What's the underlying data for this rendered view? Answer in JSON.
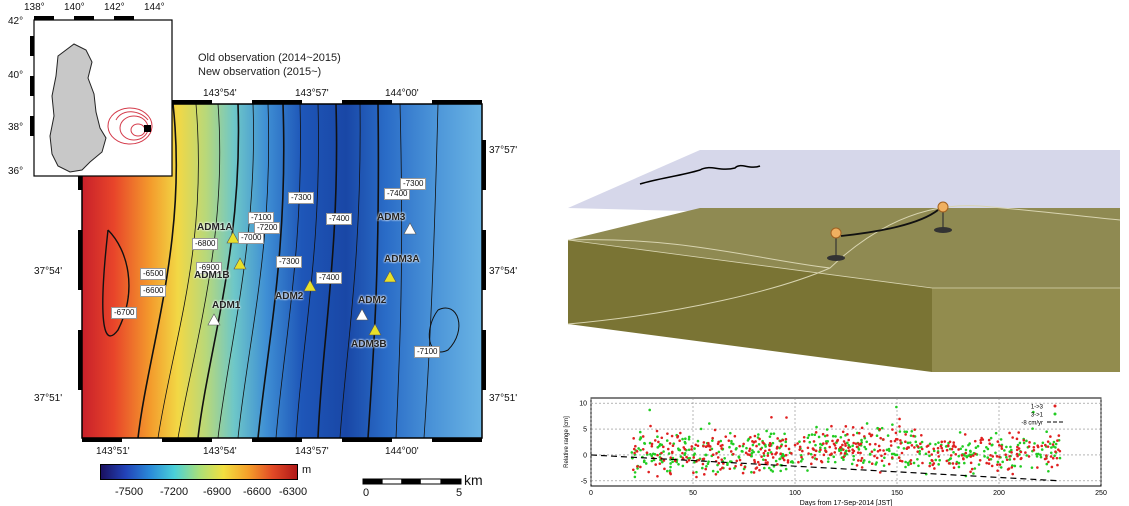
{
  "map": {
    "inset_lon_ticks": [
      "138°",
      "140°",
      "142°",
      "144°"
    ],
    "inset_lat_ticks": [
      "42°",
      "40°",
      "38°",
      "36°"
    ],
    "legend_old": "Old observation (2014~2015)",
    "legend_new": "New observation (2015~)",
    "lon_ticks": [
      "143°51'",
      "143°54'",
      "143°57'",
      "144°00'"
    ],
    "lat_ticks": [
      "37°57'",
      "37°54'",
      "37°51'"
    ],
    "stations": {
      "adm1a": "ADM1A",
      "adm1b": "ADM1B",
      "adm1": "ADM1",
      "adm2_y": "ADM2",
      "adm2_w": "ADM2",
      "adm3": "ADM3",
      "adm3a": "ADM3A",
      "adm3b": "ADM3B"
    },
    "contours": [
      "-6500",
      "-6600",
      "-6700",
      "-6800",
      "-6900",
      "-7000",
      "-7100",
      "-7200",
      "-7300",
      "-7300",
      "-7400",
      "-7400",
      "-7400",
      "-7300",
      "-7100"
    ],
    "colorbar": {
      "unit": "m",
      "ticks": [
        "-7500",
        "-7200",
        "-6900",
        "-6600",
        "-6300"
      ]
    },
    "scale": {
      "unit": "km",
      "ticks": [
        "0",
        "5"
      ]
    }
  },
  "chart_data": {
    "type": "scatter",
    "ylabel": "Relative range [cm]",
    "xlabel": "Days from 17-Sep-2014 [JST]",
    "xlim": [
      0,
      250
    ],
    "ylim": [
      -6,
      11
    ],
    "xticks": [
      "0",
      "50",
      "100",
      "150",
      "200",
      "250"
    ],
    "yticks": [
      "10",
      "5",
      "0",
      "-5"
    ],
    "grid": true,
    "legend_position": "top-right",
    "series": [
      {
        "name": "1->3",
        "color": "#e02020",
        "marker": "dot"
      },
      {
        "name": "3->1",
        "color": "#22cc22",
        "marker": "dot"
      },
      {
        "name": "-8 cm/yr",
        "color": "#000000",
        "style": "dashed",
        "points": [
          [
            0,
            0
          ],
          [
            230,
            -5
          ]
        ]
      }
    ],
    "observation_span_days": [
      20,
      230
    ],
    "typical_range_cm": [
      -3,
      4
    ]
  }
}
